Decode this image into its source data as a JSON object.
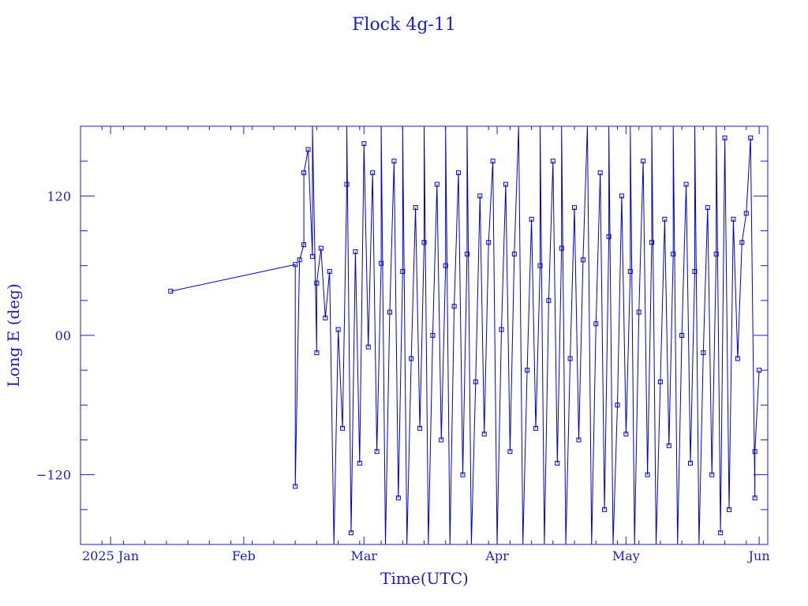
{
  "chart_data": {
    "type": "line",
    "title": "Flock 4g-11",
    "xlabel": "Time(UTC)",
    "ylabel": "Long E (deg)",
    "x_range": [
      "2024-12-25",
      "2025-06-03"
    ],
    "ylim": [
      -180,
      180
    ],
    "x_ticks": [
      {
        "date": "2025-01-01",
        "label": "2025 Jan"
      },
      {
        "date": "2025-02-01",
        "label": "Feb"
      },
      {
        "date": "2025-03-01",
        "label": "Mar"
      },
      {
        "date": "2025-04-01",
        "label": "Apr"
      },
      {
        "date": "2025-05-01",
        "label": "May"
      },
      {
        "date": "2025-06-01",
        "label": "Jun"
      }
    ],
    "y_ticks": [
      {
        "value": 120,
        "label": "120"
      },
      {
        "value": 0,
        "label": "00"
      },
      {
        "value": -120,
        "label": "−120"
      }
    ],
    "grid": false,
    "legend": "none",
    "series_color": "#0000cc",
    "frame_color": "#1e1ebe",
    "series": [
      {
        "points": [
          {
            "x": "2025-01-15",
            "y": 38
          },
          {
            "x": "2025-02-13",
            "y": 61
          },
          {
            "x": "2025-02-13",
            "y": -130
          },
          {
            "x": "2025-02-14",
            "y": 65
          },
          {
            "x": "2025-02-15",
            "y": 78
          },
          {
            "x": "2025-02-15",
            "y": 140
          },
          {
            "x": "2025-02-16",
            "y": 160
          },
          {
            "x": "2025-02-17",
            "y": 68
          },
          {
            "x": "2025-02-17",
            "y": 180
          },
          {
            "x": "2025-02-18",
            "y": -15
          },
          {
            "x": "2025-02-18",
            "y": 45
          },
          {
            "x": "2025-02-19",
            "y": 75
          },
          {
            "x": "2025-02-20",
            "y": 15
          },
          {
            "x": "2025-02-21",
            "y": 55
          },
          {
            "x": "2025-02-22",
            "y": -180
          },
          {
            "x": "2025-02-23",
            "y": 5
          },
          {
            "x": "2025-02-24",
            "y": -80
          },
          {
            "x": "2025-02-25",
            "y": 130
          },
          {
            "x": "2025-02-25",
            "y": 180
          },
          {
            "x": "2025-02-26",
            "y": -170
          },
          {
            "x": "2025-02-27",
            "y": 72
          },
          {
            "x": "2025-02-28",
            "y": -110
          },
          {
            "x": "2025-03-01",
            "y": 165
          },
          {
            "x": "2025-03-02",
            "y": -10
          },
          {
            "x": "2025-03-03",
            "y": 140
          },
          {
            "x": "2025-03-04",
            "y": -100
          },
          {
            "x": "2025-03-05",
            "y": 62
          },
          {
            "x": "2025-03-05",
            "y": 180
          },
          {
            "x": "2025-03-06",
            "y": -180
          },
          {
            "x": "2025-03-07",
            "y": 20
          },
          {
            "x": "2025-03-08",
            "y": 150
          },
          {
            "x": "2025-03-09",
            "y": -140
          },
          {
            "x": "2025-03-10",
            "y": 55
          },
          {
            "x": "2025-03-10",
            "y": 180
          },
          {
            "x": "2025-03-11",
            "y": -180
          },
          {
            "x": "2025-03-12",
            "y": -20
          },
          {
            "x": "2025-03-13",
            "y": 110
          },
          {
            "x": "2025-03-14",
            "y": -80
          },
          {
            "x": "2025-03-15",
            "y": 80
          },
          {
            "x": "2025-03-15",
            "y": 180
          },
          {
            "x": "2025-03-16",
            "y": -180
          },
          {
            "x": "2025-03-17",
            "y": 0
          },
          {
            "x": "2025-03-18",
            "y": 130
          },
          {
            "x": "2025-03-19",
            "y": -90
          },
          {
            "x": "2025-03-20",
            "y": 60
          },
          {
            "x": "2025-03-20",
            "y": 180
          },
          {
            "x": "2025-03-21",
            "y": -180
          },
          {
            "x": "2025-03-22",
            "y": 25
          },
          {
            "x": "2025-03-23",
            "y": 140
          },
          {
            "x": "2025-03-24",
            "y": -120
          },
          {
            "x": "2025-03-25",
            "y": 70
          },
          {
            "x": "2025-03-25",
            "y": 180
          },
          {
            "x": "2025-03-26",
            "y": -180
          },
          {
            "x": "2025-03-27",
            "y": -40
          },
          {
            "x": "2025-03-28",
            "y": 120
          },
          {
            "x": "2025-03-29",
            "y": -85
          },
          {
            "x": "2025-03-30",
            "y": 80
          },
          {
            "x": "2025-03-31",
            "y": 150
          },
          {
            "x": "2025-04-01",
            "y": -180
          },
          {
            "x": "2025-04-02",
            "y": 5
          },
          {
            "x": "2025-04-03",
            "y": 130
          },
          {
            "x": "2025-04-04",
            "y": -100
          },
          {
            "x": "2025-04-05",
            "y": 70
          },
          {
            "x": "2025-04-06",
            "y": 180
          },
          {
            "x": "2025-04-07",
            "y": -180
          },
          {
            "x": "2025-04-08",
            "y": -30
          },
          {
            "x": "2025-04-09",
            "y": 100
          },
          {
            "x": "2025-04-10",
            "y": -80
          },
          {
            "x": "2025-04-11",
            "y": 60
          },
          {
            "x": "2025-04-11",
            "y": 180
          },
          {
            "x": "2025-04-12",
            "y": -180
          },
          {
            "x": "2025-04-13",
            "y": 30
          },
          {
            "x": "2025-04-14",
            "y": 150
          },
          {
            "x": "2025-04-15",
            "y": -110
          },
          {
            "x": "2025-04-16",
            "y": 75
          },
          {
            "x": "2025-04-16",
            "y": 180
          },
          {
            "x": "2025-04-17",
            "y": -180
          },
          {
            "x": "2025-04-18",
            "y": -20
          },
          {
            "x": "2025-04-19",
            "y": 110
          },
          {
            "x": "2025-04-20",
            "y": -90
          },
          {
            "x": "2025-04-21",
            "y": 65
          },
          {
            "x": "2025-04-22",
            "y": 180
          },
          {
            "x": "2025-04-23",
            "y": -180
          },
          {
            "x": "2025-04-24",
            "y": 10
          },
          {
            "x": "2025-04-25",
            "y": 140
          },
          {
            "x": "2025-04-26",
            "y": -150
          },
          {
            "x": "2025-04-27",
            "y": 85
          },
          {
            "x": "2025-04-27",
            "y": 180
          },
          {
            "x": "2025-04-28",
            "y": -180
          },
          {
            "x": "2025-04-29",
            "y": -60
          },
          {
            "x": "2025-04-30",
            "y": 120
          },
          {
            "x": "2025-05-01",
            "y": -85
          },
          {
            "x": "2025-05-02",
            "y": 55
          },
          {
            "x": "2025-05-02",
            "y": 180
          },
          {
            "x": "2025-05-03",
            "y": -180
          },
          {
            "x": "2025-05-04",
            "y": 20
          },
          {
            "x": "2025-05-05",
            "y": 150
          },
          {
            "x": "2025-05-06",
            "y": -120
          },
          {
            "x": "2025-05-07",
            "y": 80
          },
          {
            "x": "2025-05-07",
            "y": 180
          },
          {
            "x": "2025-05-08",
            "y": -180
          },
          {
            "x": "2025-05-09",
            "y": -40
          },
          {
            "x": "2025-05-10",
            "y": 100
          },
          {
            "x": "2025-05-11",
            "y": -95
          },
          {
            "x": "2025-05-12",
            "y": 70
          },
          {
            "x": "2025-05-12",
            "y": 180
          },
          {
            "x": "2025-05-13",
            "y": -180
          },
          {
            "x": "2025-05-14",
            "y": 0
          },
          {
            "x": "2025-05-15",
            "y": 130
          },
          {
            "x": "2025-05-16",
            "y": -110
          },
          {
            "x": "2025-05-17",
            "y": 55
          },
          {
            "x": "2025-05-17",
            "y": 180
          },
          {
            "x": "2025-05-18",
            "y": -180
          },
          {
            "x": "2025-05-19",
            "y": -15
          },
          {
            "x": "2025-05-20",
            "y": 110
          },
          {
            "x": "2025-05-21",
            "y": -120
          },
          {
            "x": "2025-05-22",
            "y": 70
          },
          {
            "x": "2025-05-22",
            "y": 180
          },
          {
            "x": "2025-05-23",
            "y": -170
          },
          {
            "x": "2025-05-24",
            "y": 170
          },
          {
            "x": "2025-05-25",
            "y": -150
          },
          {
            "x": "2025-05-26",
            "y": 100
          },
          {
            "x": "2025-05-27",
            "y": -20
          },
          {
            "x": "2025-05-28",
            "y": 80
          },
          {
            "x": "2025-05-29",
            "y": 105
          },
          {
            "x": "2025-05-30",
            "y": 170
          },
          {
            "x": "2025-05-31",
            "y": -140
          },
          {
            "x": "2025-05-31",
            "y": -100
          },
          {
            "x": "2025-06-01",
            "y": -30
          }
        ]
      }
    ]
  }
}
